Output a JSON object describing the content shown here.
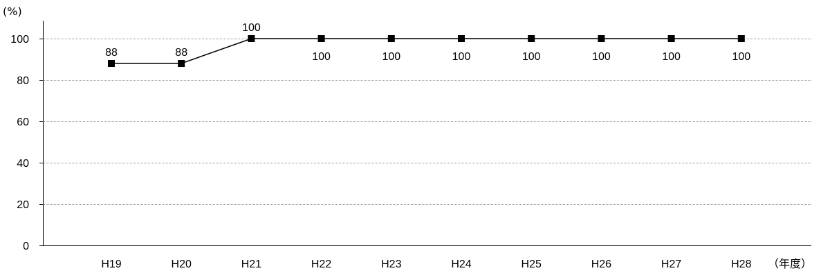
{
  "chart_data": {
    "type": "line",
    "y_unit_label": "(%)",
    "x_unit_label": "（年度）",
    "categories": [
      "H19",
      "H20",
      "H21",
      "H22",
      "H23",
      "H24",
      "H25",
      "H26",
      "H27",
      "H28"
    ],
    "series": [
      {
        "values": [
          88,
          88,
          100,
          100,
          100,
          100,
          100,
          100,
          100,
          100
        ]
      }
    ],
    "data_labels": [
      "88",
      "88",
      "100",
      "100",
      "100",
      "100",
      "100",
      "100",
      "100",
      "100"
    ],
    "ylim": [
      0,
      100
    ],
    "yticks": [
      "0",
      "20",
      "40",
      "60",
      "80",
      "100"
    ],
    "grid": true,
    "colors": {
      "line": "#000000",
      "marker": "#000000",
      "grid": "#888888",
      "axis": "#000000"
    }
  }
}
